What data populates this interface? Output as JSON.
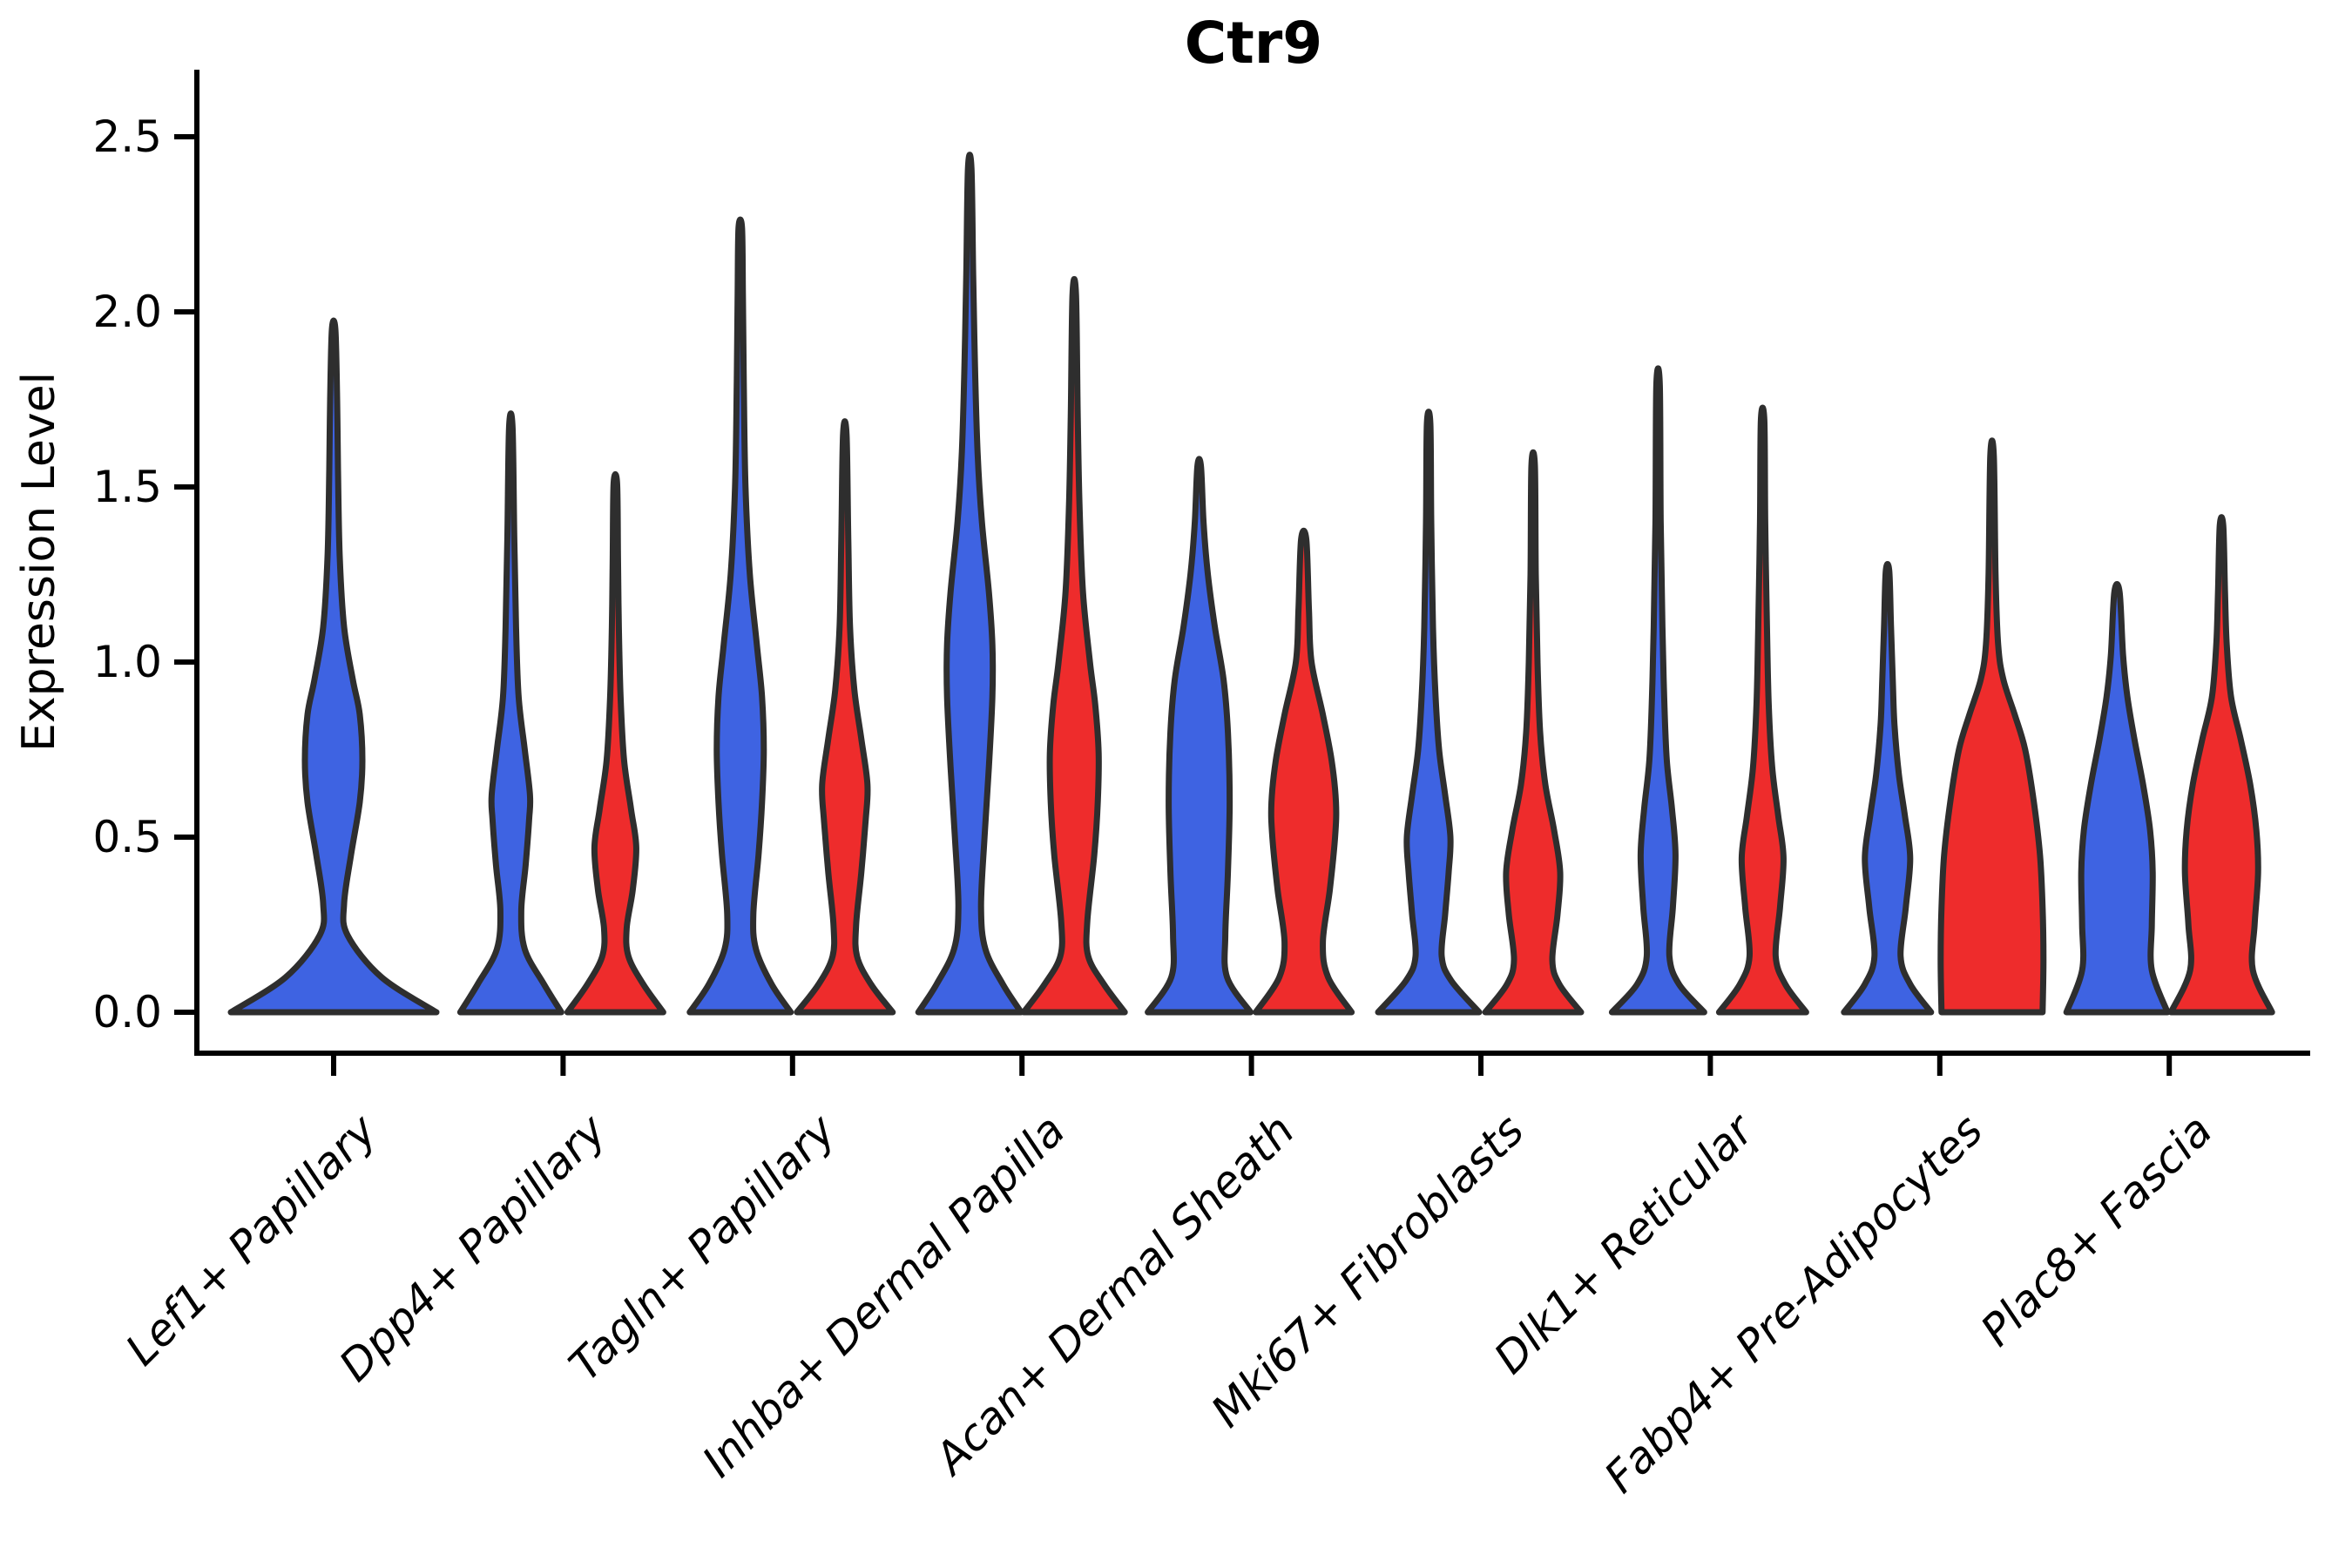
{
  "chart_data": {
    "type": "violin",
    "title": "Ctr9",
    "xlabel": "",
    "ylabel": "Expression Level",
    "yticks": [
      0.0,
      0.5,
      1.0,
      1.5,
      2.0,
      2.5
    ],
    "ytick_labels": [
      "0.0",
      "0.5",
      "1.0",
      "1.5",
      "2.0",
      "2.5"
    ],
    "ylim": [
      -0.12,
      2.68
    ],
    "grid": false,
    "legend": "none",
    "categories": [
      "Lef1+ Papillary",
      "Dpp4+ Papillary",
      "Tagln+ Papillary",
      "Inhba+ Dermal Papilla",
      "Acan+ Dermal Sheath",
      "Mki67+ Fibroblasts",
      "Dlk1+ Reticular",
      "Fabp4+ Pre-Adipocytes",
      "Plac8+ Fascia"
    ],
    "series_colors": {
      "blue": "#3E63E2",
      "red": "#EE2C2C"
    },
    "outline_color": "#2e2e2e",
    "axis_color": "#000000",
    "violins": [
      {
        "category_index": 0,
        "series": "blue",
        "max_expression": 1.95,
        "profile": [
          [
            0,
            118
          ],
          [
            0.1,
            55
          ],
          [
            0.22,
            16
          ],
          [
            0.31,
            12
          ],
          [
            0.45,
            20
          ],
          [
            0.6,
            30
          ],
          [
            0.72,
            33
          ],
          [
            0.85,
            30
          ],
          [
            0.95,
            22
          ],
          [
            1.1,
            12
          ],
          [
            1.3,
            7
          ],
          [
            1.55,
            5
          ],
          [
            1.75,
            4
          ],
          [
            1.95,
            2
          ]
        ]
      },
      {
        "category_index": 1,
        "series": "blue",
        "max_expression": 1.67,
        "profile": [
          [
            0,
            58
          ],
          [
            0.08,
            38
          ],
          [
            0.18,
            16
          ],
          [
            0.29,
            12
          ],
          [
            0.42,
            17
          ],
          [
            0.55,
            21
          ],
          [
            0.62,
            22
          ],
          [
            0.75,
            16
          ],
          [
            0.9,
            9
          ],
          [
            1.1,
            6
          ],
          [
            1.35,
            4
          ],
          [
            1.67,
            2
          ]
        ]
      },
      {
        "category_index": 1,
        "series": "red",
        "max_expression": 1.51,
        "profile": [
          [
            0,
            55
          ],
          [
            0.08,
            32
          ],
          [
            0.16,
            15
          ],
          [
            0.24,
            13
          ],
          [
            0.35,
            20
          ],
          [
            0.47,
            24
          ],
          [
            0.58,
            18
          ],
          [
            0.72,
            10
          ],
          [
            0.9,
            6
          ],
          [
            1.1,
            4
          ],
          [
            1.3,
            3
          ],
          [
            1.51,
            2
          ]
        ]
      },
      {
        "category_index": 2,
        "series": "blue",
        "max_expression": 2.24,
        "profile": [
          [
            0,
            58
          ],
          [
            0.08,
            36
          ],
          [
            0.18,
            18
          ],
          [
            0.28,
            15
          ],
          [
            0.45,
            21
          ],
          [
            0.6,
            25
          ],
          [
            0.75,
            27
          ],
          [
            0.9,
            25
          ],
          [
            1.05,
            19
          ],
          [
            1.25,
            11
          ],
          [
            1.5,
            6
          ],
          [
            1.8,
            4
          ],
          [
            2.05,
            3
          ],
          [
            2.24,
            2
          ]
        ]
      },
      {
        "category_index": 2,
        "series": "red",
        "max_expression": 1.65,
        "profile": [
          [
            0,
            55
          ],
          [
            0.08,
            30
          ],
          [
            0.16,
            14
          ],
          [
            0.25,
            13
          ],
          [
            0.4,
            19
          ],
          [
            0.55,
            24
          ],
          [
            0.65,
            26
          ],
          [
            0.78,
            19
          ],
          [
            0.92,
            11
          ],
          [
            1.1,
            6
          ],
          [
            1.35,
            4
          ],
          [
            1.65,
            2
          ]
        ]
      },
      {
        "category_index": 3,
        "series": "blue",
        "max_expression": 2.41,
        "profile": [
          [
            0,
            59
          ],
          [
            0.08,
            38
          ],
          [
            0.18,
            18
          ],
          [
            0.3,
            13
          ],
          [
            0.5,
            17
          ],
          [
            0.7,
            22
          ],
          [
            0.9,
            26
          ],
          [
            1.05,
            26
          ],
          [
            1.2,
            22
          ],
          [
            1.4,
            14
          ],
          [
            1.6,
            9
          ],
          [
            1.85,
            6
          ],
          [
            2.1,
            4
          ],
          [
            2.41,
            2
          ]
        ]
      },
      {
        "category_index": 3,
        "series": "red",
        "max_expression": 2.05,
        "profile": [
          [
            0,
            58
          ],
          [
            0.08,
            34
          ],
          [
            0.16,
            16
          ],
          [
            0.26,
            15
          ],
          [
            0.45,
            23
          ],
          [
            0.6,
            27
          ],
          [
            0.74,
            28
          ],
          [
            0.88,
            24
          ],
          [
            1.0,
            18
          ],
          [
            1.2,
            10
          ],
          [
            1.45,
            6
          ],
          [
            1.7,
            4
          ],
          [
            2.05,
            2
          ]
        ]
      },
      {
        "category_index": 4,
        "series": "blue",
        "max_expression": 1.56,
        "profile": [
          [
            0,
            59
          ],
          [
            0.1,
            32
          ],
          [
            0.22,
            30
          ],
          [
            0.4,
            33
          ],
          [
            0.6,
            35
          ],
          [
            0.8,
            33
          ],
          [
            0.95,
            28
          ],
          [
            1.1,
            18
          ],
          [
            1.25,
            10
          ],
          [
            1.4,
            5
          ],
          [
            1.56,
            2
          ]
        ]
      },
      {
        "category_index": 4,
        "series": "red",
        "max_expression": 1.35,
        "profile": [
          [
            0,
            55
          ],
          [
            0.1,
            28
          ],
          [
            0.2,
            22
          ],
          [
            0.35,
            30
          ],
          [
            0.5,
            36
          ],
          [
            0.6,
            37
          ],
          [
            0.72,
            32
          ],
          [
            0.85,
            22
          ],
          [
            1.0,
            9
          ],
          [
            1.15,
            6
          ],
          [
            1.35,
            3
          ]
        ]
      },
      {
        "category_index": 5,
        "series": "blue",
        "max_expression": 1.68,
        "profile": [
          [
            0,
            58
          ],
          [
            0.09,
            26
          ],
          [
            0.16,
            15
          ],
          [
            0.28,
            19
          ],
          [
            0.4,
            23
          ],
          [
            0.5,
            25
          ],
          [
            0.62,
            19
          ],
          [
            0.75,
            12
          ],
          [
            0.9,
            8
          ],
          [
            1.1,
            5
          ],
          [
            1.4,
            3
          ],
          [
            1.68,
            2
          ]
        ]
      },
      {
        "category_index": 5,
        "series": "red",
        "max_expression": 1.56,
        "profile": [
          [
            0,
            55
          ],
          [
            0.08,
            30
          ],
          [
            0.15,
            22
          ],
          [
            0.28,
            28
          ],
          [
            0.4,
            31
          ],
          [
            0.52,
            24
          ],
          [
            0.65,
            14
          ],
          [
            0.8,
            8
          ],
          [
            1.0,
            5
          ],
          [
            1.25,
            3
          ],
          [
            1.56,
            2
          ]
        ]
      },
      {
        "category_index": 6,
        "series": "blue",
        "max_expression": 1.79,
        "profile": [
          [
            0,
            53
          ],
          [
            0.08,
            24
          ],
          [
            0.16,
            13
          ],
          [
            0.3,
            17
          ],
          [
            0.45,
            20
          ],
          [
            0.58,
            16
          ],
          [
            0.72,
            10
          ],
          [
            0.9,
            7
          ],
          [
            1.1,
            5
          ],
          [
            1.4,
            3
          ],
          [
            1.79,
            2
          ]
        ]
      },
      {
        "category_index": 6,
        "series": "red",
        "max_expression": 1.69,
        "profile": [
          [
            0,
            50
          ],
          [
            0.08,
            26
          ],
          [
            0.16,
            15
          ],
          [
            0.3,
            20
          ],
          [
            0.44,
            24
          ],
          [
            0.56,
            18
          ],
          [
            0.7,
            11
          ],
          [
            0.88,
            7
          ],
          [
            1.1,
            5
          ],
          [
            1.4,
            3
          ],
          [
            1.69,
            2
          ]
        ]
      },
      {
        "category_index": 7,
        "series": "blue",
        "max_expression": 1.26,
        "profile": [
          [
            0,
            50
          ],
          [
            0.08,
            26
          ],
          [
            0.16,
            15
          ],
          [
            0.3,
            21
          ],
          [
            0.44,
            26
          ],
          [
            0.56,
            20
          ],
          [
            0.68,
            13
          ],
          [
            0.82,
            8
          ],
          [
            0.95,
            6
          ],
          [
            1.1,
            4
          ],
          [
            1.26,
            2
          ]
        ]
      },
      {
        "category_index": 7,
        "series": "red",
        "max_expression": 1.59,
        "profile": [
          [
            0,
            58
          ],
          [
            0.15,
            59
          ],
          [
            0.3,
            58
          ],
          [
            0.45,
            55
          ],
          [
            0.6,
            48
          ],
          [
            0.75,
            38
          ],
          [
            0.85,
            26
          ],
          [
            0.95,
            13
          ],
          [
            1.05,
            7
          ],
          [
            1.25,
            4
          ],
          [
            1.59,
            2
          ]
        ]
      },
      {
        "category_index": 8,
        "series": "blue",
        "max_expression": 1.2,
        "profile": [
          [
            0,
            58
          ],
          [
            0.12,
            40
          ],
          [
            0.25,
            40
          ],
          [
            0.4,
            41
          ],
          [
            0.52,
            38
          ],
          [
            0.65,
            30
          ],
          [
            0.78,
            20
          ],
          [
            0.9,
            12
          ],
          [
            1.02,
            7
          ],
          [
            1.2,
            3
          ]
        ]
      },
      {
        "category_index": 8,
        "series": "red",
        "max_expression": 1.39,
        "profile": [
          [
            0,
            58
          ],
          [
            0.12,
            36
          ],
          [
            0.25,
            38
          ],
          [
            0.4,
            42
          ],
          [
            0.52,
            40
          ],
          [
            0.65,
            33
          ],
          [
            0.78,
            22
          ],
          [
            0.9,
            11
          ],
          [
            1.05,
            6
          ],
          [
            1.2,
            4
          ],
          [
            1.39,
            2
          ]
        ]
      }
    ]
  }
}
